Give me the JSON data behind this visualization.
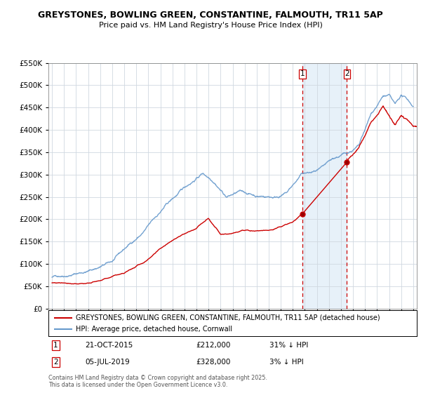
{
  "title": "GREYSTONES, BOWLING GREEN, CONSTANTINE, FALMOUTH, TR11 5AP",
  "subtitle": "Price paid vs. HM Land Registry's House Price Index (HPI)",
  "legend_entry1": "GREYSTONES, BOWLING GREEN, CONSTANTINE, FALMOUTH, TR11 5AP (detached house)",
  "legend_entry2": "HPI: Average price, detached house, Cornwall",
  "annotation1_date": "21-OCT-2015",
  "annotation1_price": "£212,000",
  "annotation1_hpi": "31% ↓ HPI",
  "annotation2_date": "05-JUL-2019",
  "annotation2_price": "£328,000",
  "annotation2_hpi": "3% ↓ HPI",
  "footnote": "Contains HM Land Registry data © Crown copyright and database right 2025.\nThis data is licensed under the Open Government Licence v3.0.",
  "vline1_x": 2015.8,
  "vline2_x": 2019.5,
  "sale1_x": 2015.8,
  "sale1_y": 212000,
  "sale2_x": 2019.5,
  "sale2_y": 328000,
  "ylim": [
    0,
    550000
  ],
  "xlim": [
    1994.7,
    2025.3
  ],
  "yticks": [
    0,
    50000,
    100000,
    150000,
    200000,
    250000,
    300000,
    350000,
    400000,
    450000,
    500000,
    550000
  ],
  "xticks": [
    1995,
    1996,
    1997,
    1998,
    1999,
    2000,
    2001,
    2002,
    2003,
    2004,
    2005,
    2006,
    2007,
    2008,
    2009,
    2010,
    2011,
    2012,
    2013,
    2014,
    2015,
    2016,
    2017,
    2018,
    2019,
    2020,
    2021,
    2022,
    2023,
    2024,
    2025
  ],
  "color_house": "#cc0000",
  "color_hpi": "#6699cc",
  "color_vline": "#cc0000",
  "color_vline_fill": "#d8e8f5",
  "grid_color": "#d0d8e0",
  "background_color": "#ffffff"
}
